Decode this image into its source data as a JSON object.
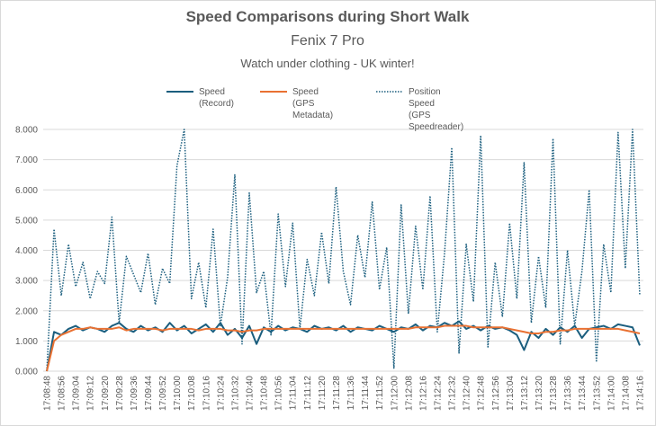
{
  "chart_data": {
    "type": "line",
    "title": "Speed Comparisons during Short Walk",
    "subtitle": "Fenix 7 Pro",
    "annotation": "Watch under clothing - UK winter!",
    "categories": [
      "17:08:48",
      null,
      "17:08:56",
      null,
      "17:09:04",
      null,
      "17:09:12",
      null,
      "17:09:20",
      null,
      "17:09:28",
      null,
      "17:09:36",
      null,
      "17:09:44",
      null,
      "17:09:52",
      null,
      "17:10:00",
      null,
      "17:10:08",
      null,
      "17:10:16",
      null,
      "17:10:24",
      null,
      "17:10:32",
      null,
      "17:10:40",
      null,
      "17:10:48",
      null,
      "17:10:56",
      null,
      "17:11:04",
      null,
      "17:11:12",
      null,
      "17:11:20",
      null,
      "17:11:28",
      null,
      "17:11:36",
      null,
      "17:11:44",
      null,
      "17:11:52",
      null,
      "17:12:00",
      null,
      "17:12:08",
      null,
      "17:12:16",
      null,
      "17:12:24",
      null,
      "17:12:32",
      null,
      "17:12:40",
      null,
      "17:12:48",
      null,
      "17:12:56",
      null,
      "17:13:04",
      null,
      "17:13:12",
      null,
      "17:13:20",
      null,
      "17:13:28",
      null,
      "17:13:36",
      null,
      "17:13:44",
      null,
      "17:13:52",
      null,
      "17:14:00",
      null,
      "17:14:08",
      null,
      "17:14:16"
    ],
    "series": [
      {
        "name": "Speed\n(Record)",
        "color": "#1b5e7e",
        "style": "solid",
        "width": 2,
        "values": [
          0,
          1.3,
          1.2,
          1.4,
          1.5,
          1.35,
          1.45,
          1.4,
          1.3,
          1.5,
          1.6,
          1.4,
          1.3,
          1.5,
          1.35,
          1.45,
          1.3,
          1.6,
          1.35,
          1.5,
          1.25,
          1.4,
          1.55,
          1.3,
          1.6,
          1.2,
          1.4,
          1.1,
          1.5,
          0.9,
          1.45,
          1.3,
          1.5,
          1.35,
          1.45,
          1.4,
          1.3,
          1.5,
          1.4,
          1.45,
          1.35,
          1.5,
          1.3,
          1.45,
          1.4,
          1.35,
          1.5,
          1.4,
          1.3,
          1.45,
          1.4,
          1.55,
          1.35,
          1.5,
          1.45,
          1.6,
          1.5,
          1.65,
          1.4,
          1.5,
          1.35,
          1.5,
          1.4,
          1.45,
          1.35,
          1.2,
          0.7,
          1.3,
          1.1,
          1.4,
          1.2,
          1.45,
          1.3,
          1.5,
          1.1,
          1.4,
          1.45,
          1.5,
          1.4,
          1.55,
          1.5,
          1.45,
          0.85
        ]
      },
      {
        "name": "Speed\n(GPS Metadata)",
        "color": "#e97132",
        "style": "solid",
        "width": 2,
        "values": [
          0,
          1.0,
          1.2,
          1.3,
          1.4,
          1.4,
          1.45,
          1.4,
          1.4,
          1.4,
          1.45,
          1.35,
          1.4,
          1.4,
          1.4,
          1.4,
          1.35,
          1.4,
          1.4,
          1.4,
          1.4,
          1.35,
          1.4,
          1.4,
          1.4,
          1.35,
          1.35,
          1.3,
          1.35,
          1.35,
          1.4,
          1.4,
          1.4,
          1.4,
          1.4,
          1.4,
          1.4,
          1.4,
          1.4,
          1.4,
          1.4,
          1.4,
          1.4,
          1.4,
          1.4,
          1.4,
          1.4,
          1.4,
          1.4,
          1.4,
          1.4,
          1.45,
          1.45,
          1.45,
          1.45,
          1.5,
          1.5,
          1.5,
          1.5,
          1.45,
          1.45,
          1.45,
          1.45,
          1.45,
          1.4,
          1.35,
          1.3,
          1.25,
          1.25,
          1.3,
          1.3,
          1.35,
          1.35,
          1.4,
          1.4,
          1.4,
          1.4,
          1.4,
          1.4,
          1.4,
          1.35,
          1.3,
          1.25
        ]
      },
      {
        "name": "Position Speed\n(GPS Speedreader)",
        "color": "#1b5e7e",
        "style": "dotted",
        "width": 1.5,
        "values": [
          0,
          4.7,
          2.5,
          4.2,
          2.8,
          3.6,
          2.4,
          3.3,
          2.9,
          5.1,
          1.6,
          3.8,
          3.2,
          2.6,
          3.9,
          2.2,
          3.4,
          2.9,
          6.8,
          8.0,
          2.4,
          3.6,
          2.1,
          4.7,
          1.5,
          3.1,
          6.5,
          0.9,
          5.9,
          2.6,
          3.3,
          1.2,
          5.2,
          2.8,
          4.9,
          1.4,
          3.7,
          2.5,
          4.6,
          2.9,
          6.1,
          3.3,
          2.2,
          4.5,
          3.1,
          5.6,
          2.7,
          4.1,
          0.1,
          5.5,
          1.9,
          4.8,
          2.7,
          5.8,
          1.3,
          3.9,
          7.4,
          0.6,
          4.2,
          2.3,
          7.8,
          0.8,
          3.6,
          1.8,
          4.9,
          2.4,
          6.9,
          1.6,
          3.8,
          2.1,
          7.7,
          0.9,
          4.0,
          1.5,
          3.3,
          6.0,
          0.3,
          4.2,
          2.6,
          7.9,
          3.4,
          8.0,
          2.5
        ]
      }
    ],
    "ylim": [
      0,
      8
    ],
    "yticks": [
      {
        "value": 0,
        "label": "0.000"
      },
      {
        "value": 1,
        "label": "1.000"
      },
      {
        "value": 2,
        "label": "2.000"
      },
      {
        "value": 3,
        "label": "3.000"
      },
      {
        "value": 4,
        "label": "4.000"
      },
      {
        "value": 5,
        "label": "5.000"
      },
      {
        "value": 6,
        "label": "6.000"
      },
      {
        "value": 7,
        "label": "7.000"
      },
      {
        "value": 8,
        "label": "8.000"
      }
    ],
    "grid": true,
    "legend": "top"
  }
}
